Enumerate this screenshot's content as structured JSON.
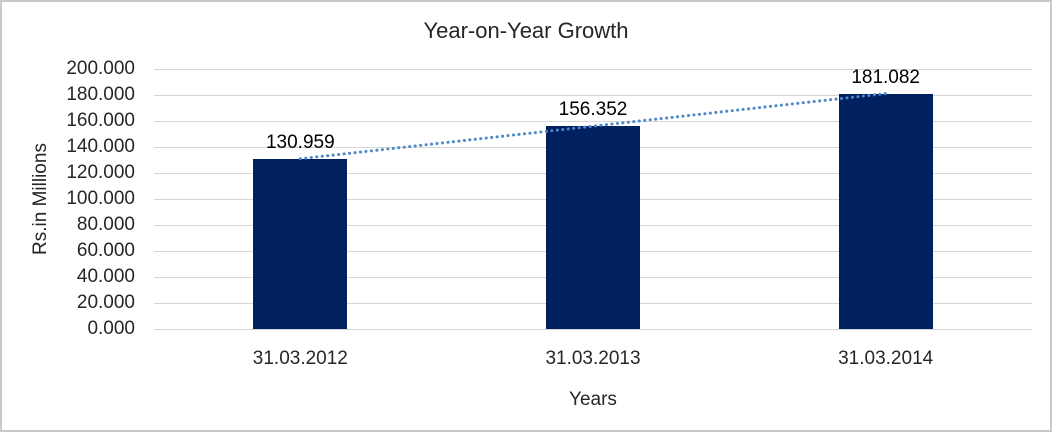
{
  "chart_data": {
    "type": "bar",
    "title": "Year-on-Year Growth",
    "categories": [
      "31.03.2012",
      "31.03.2013",
      "31.03.2014"
    ],
    "values": [
      130.959,
      156.352,
      181.082
    ],
    "value_labels": [
      "130.959",
      "156.352",
      "181.082"
    ],
    "xlabel": "Years",
    "ylabel": "Rs.in Millions",
    "ylim": [
      0,
      200
    ],
    "ytick_values": [
      0,
      20,
      40,
      60,
      80,
      100,
      120,
      140,
      160,
      180,
      200
    ],
    "ytick_labels": [
      "0.000",
      "20.000",
      "40.000",
      "60.000",
      "80.000",
      "100.000",
      "120.000",
      "140.000",
      "160.000",
      "180.000",
      "200.000"
    ],
    "grid": "horizontal",
    "legend": "none",
    "trendline": {
      "type": "linear",
      "style": "dotted",
      "color": "#4f87c8"
    },
    "colors": {
      "bar": "#002060",
      "gridline": "#d6d6d6",
      "frame_border": "#c9c9c9",
      "text": "#262626"
    }
  }
}
